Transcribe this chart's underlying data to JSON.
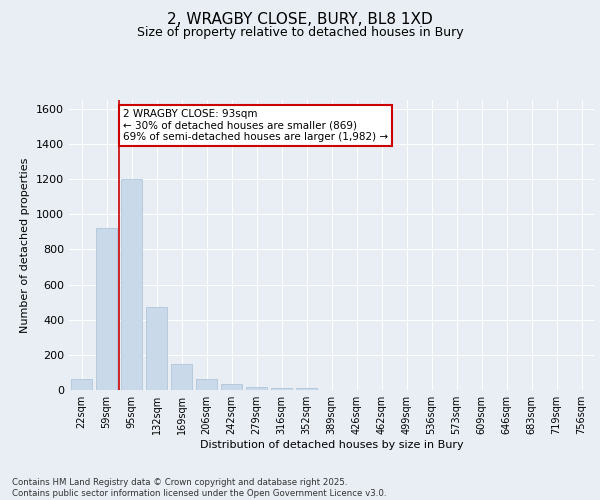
{
  "title": "2, WRAGBY CLOSE, BURY, BL8 1XD",
  "subtitle": "Size of property relative to detached houses in Bury",
  "xlabel": "Distribution of detached houses by size in Bury",
  "ylabel": "Number of detached properties",
  "bar_color": "#c9d9ea",
  "bar_edge_color": "#a8c0d8",
  "vline_color": "#cc0000",
  "vline_x_index": 2,
  "annotation_text": "2 WRAGBY CLOSE: 93sqm\n← 30% of detached houses are smaller (869)\n69% of semi-detached houses are larger (1,982) →",
  "annotation_box_color": "#cc0000",
  "categories": [
    "22sqm",
    "59sqm",
    "95sqm",
    "132sqm",
    "169sqm",
    "206sqm",
    "242sqm",
    "279sqm",
    "316sqm",
    "352sqm",
    "389sqm",
    "426sqm",
    "462sqm",
    "499sqm",
    "536sqm",
    "573sqm",
    "609sqm",
    "646sqm",
    "683sqm",
    "719sqm",
    "756sqm"
  ],
  "values": [
    60,
    920,
    1200,
    470,
    150,
    60,
    35,
    15,
    10,
    10,
    0,
    0,
    0,
    0,
    0,
    0,
    0,
    0,
    0,
    0,
    0
  ],
  "ylim": [
    0,
    1650
  ],
  "yticks": [
    0,
    200,
    400,
    600,
    800,
    1000,
    1200,
    1400,
    1600
  ],
  "footer_text": "Contains HM Land Registry data © Crown copyright and database right 2025.\nContains public sector information licensed under the Open Government Licence v3.0.",
  "bg_color": "#e8eef4"
}
